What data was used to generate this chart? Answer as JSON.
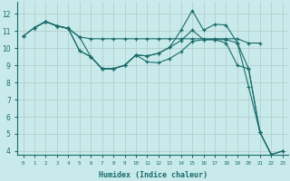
{
  "xlabel": "Humidex (Indice chaleur)",
  "bg_color": "#c8eaea",
  "grid_color": "#b0c8c8",
  "line_color": "#1a6b6b",
  "marker": "+",
  "xlim": [
    -0.5,
    23.5
  ],
  "ylim": [
    3.8,
    12.7
  ],
  "yticks": [
    4,
    5,
    6,
    7,
    8,
    9,
    10,
    11,
    12
  ],
  "xticks": [
    0,
    1,
    2,
    3,
    4,
    5,
    6,
    7,
    8,
    9,
    10,
    11,
    12,
    13,
    14,
    15,
    16,
    17,
    18,
    19,
    20,
    21,
    22,
    23
  ],
  "xtick_labels": [
    "0",
    "1",
    "2",
    "3",
    "4",
    "5",
    "6",
    "7",
    "8",
    "9",
    "10",
    "11",
    "12",
    "13",
    "14",
    "15",
    "16",
    "17",
    "18",
    "19",
    "20",
    "21",
    "22",
    "23"
  ],
  "series": [
    [
      [
        0,
        10.7
      ],
      [
        1,
        11.2
      ],
      [
        2,
        11.55
      ],
      [
        3,
        11.3
      ],
      [
        4,
        11.15
      ],
      [
        5,
        10.65
      ],
      [
        6,
        10.55
      ],
      [
        7,
        10.55
      ],
      [
        8,
        10.55
      ],
      [
        9,
        10.55
      ],
      [
        10,
        10.55
      ],
      [
        11,
        10.55
      ],
      [
        12,
        10.55
      ],
      [
        13,
        10.55
      ],
      [
        14,
        10.55
      ],
      [
        15,
        10.55
      ],
      [
        16,
        10.55
      ],
      [
        17,
        10.55
      ],
      [
        18,
        10.55
      ],
      [
        19,
        10.55
      ],
      [
        20,
        10.3
      ],
      [
        21,
        10.3
      ]
    ],
    [
      [
        1,
        11.2
      ],
      [
        2,
        11.55
      ],
      [
        3,
        11.3
      ],
      [
        4,
        11.15
      ],
      [
        5,
        9.85
      ],
      [
        6,
        9.5
      ],
      [
        7,
        8.8
      ],
      [
        8,
        8.8
      ],
      [
        9,
        9.0
      ],
      [
        10,
        9.6
      ],
      [
        11,
        9.55
      ],
      [
        12,
        9.7
      ],
      [
        13,
        10.05
      ],
      [
        14,
        11.05
      ],
      [
        15,
        12.2
      ],
      [
        16,
        11.05
      ],
      [
        17,
        11.4
      ],
      [
        18,
        11.35
      ],
      [
        19,
        10.3
      ],
      [
        20,
        7.75
      ],
      [
        21,
        5.1
      ],
      [
        22,
        3.8
      ]
    ],
    [
      [
        1,
        11.2
      ],
      [
        2,
        11.55
      ],
      [
        3,
        11.3
      ],
      [
        4,
        11.15
      ],
      [
        5,
        9.85
      ],
      [
        6,
        9.5
      ],
      [
        7,
        8.8
      ],
      [
        8,
        8.8
      ],
      [
        9,
        9.0
      ],
      [
        10,
        9.6
      ],
      [
        11,
        9.55
      ],
      [
        12,
        9.7
      ],
      [
        13,
        10.05
      ],
      [
        14,
        10.45
      ],
      [
        15,
        11.05
      ],
      [
        16,
        10.5
      ],
      [
        17,
        10.5
      ],
      [
        18,
        10.5
      ],
      [
        19,
        10.3
      ],
      [
        20,
        8.8
      ],
      [
        21,
        5.1
      ],
      [
        22,
        3.8
      ],
      [
        23,
        4.0
      ]
    ],
    [
      [
        0,
        10.7
      ],
      [
        1,
        11.2
      ],
      [
        2,
        11.55
      ],
      [
        3,
        11.3
      ],
      [
        4,
        11.15
      ],
      [
        5,
        10.65
      ],
      [
        6,
        9.5
      ],
      [
        7,
        8.8
      ],
      [
        8,
        8.8
      ],
      [
        9,
        9.0
      ],
      [
        10,
        9.6
      ],
      [
        11,
        9.2
      ],
      [
        12,
        9.15
      ],
      [
        13,
        9.4
      ],
      [
        14,
        9.8
      ],
      [
        15,
        10.4
      ],
      [
        16,
        10.5
      ],
      [
        17,
        10.5
      ],
      [
        18,
        10.3
      ],
      [
        19,
        9.0
      ],
      [
        20,
        8.8
      ],
      [
        21,
        5.1
      ],
      [
        22,
        3.8
      ],
      [
        23,
        4.0
      ]
    ]
  ]
}
